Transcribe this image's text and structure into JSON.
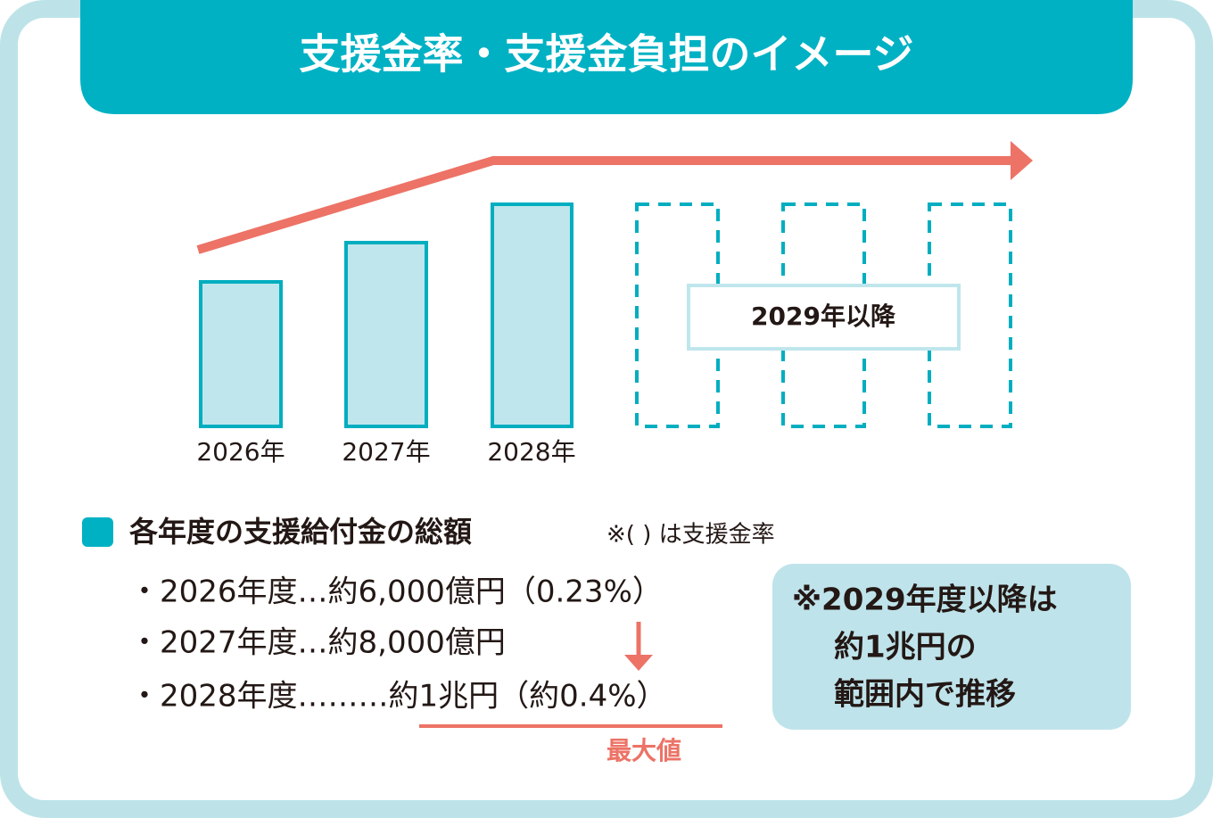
{
  "header": {
    "title": "支援金率・支援金負担のイメージ"
  },
  "bars": {
    "labels": [
      "2026年",
      "2027年",
      "2028年"
    ],
    "future_label": "2029年以降"
  },
  "legend": {
    "heading": "各年度の支援給付金の総額",
    "note": "※( ) は支援金率",
    "items": [
      "・2026年度…約6,000億円（0.23%）",
      "・2027年度…約8,000億円",
      "・2028年度………約1兆円（約0.4%）"
    ],
    "max_label": "最大値"
  },
  "callout": {
    "lines": [
      "※2029年度以降は",
      "約1兆円の",
      "範囲内で推移"
    ]
  }
}
